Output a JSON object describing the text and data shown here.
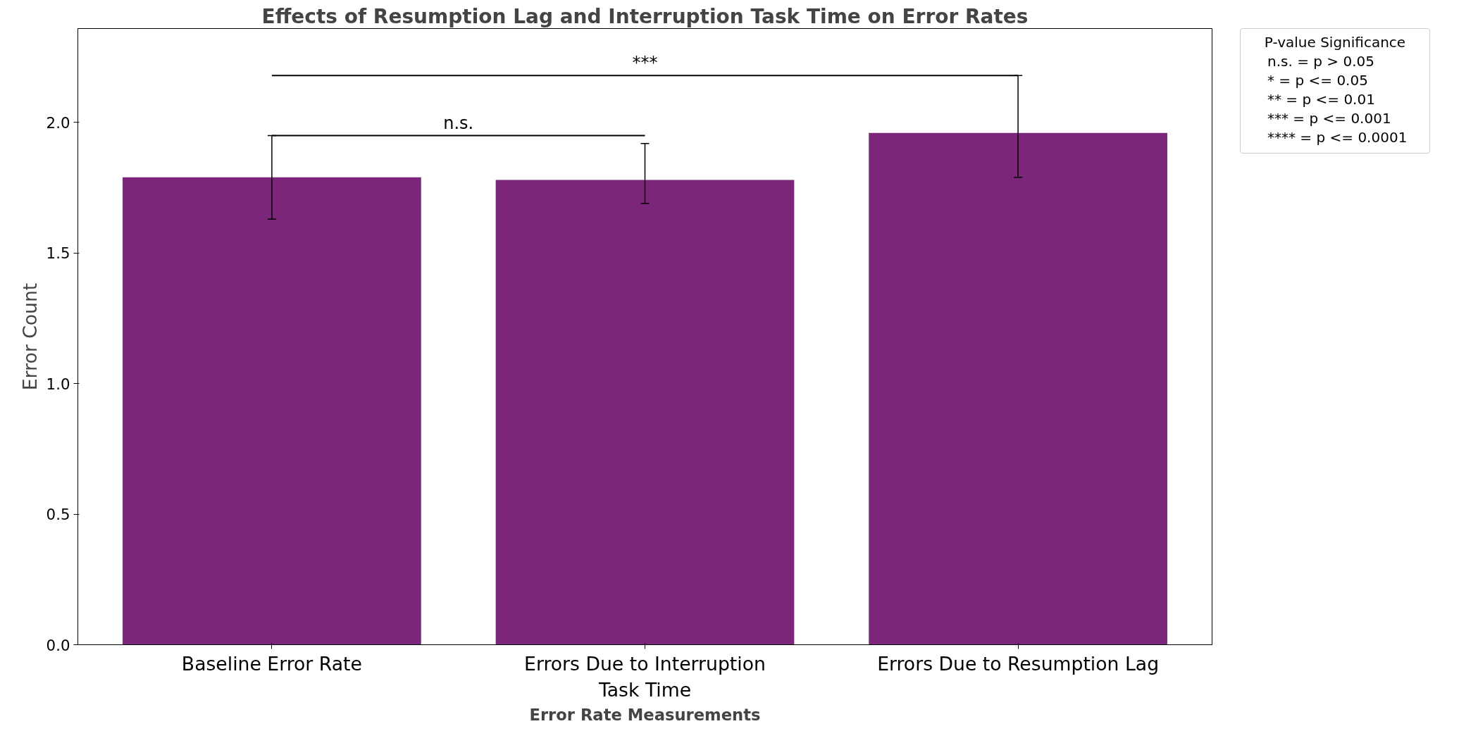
{
  "chart_data": {
    "type": "bar",
    "title": "Effects of Resumption Lag and Interruption Task Time on Error Rates",
    "xlabel": "Error Rate Measurements",
    "ylabel": "Error Count",
    "categories": [
      "Baseline Error Rate",
      "Errors Due to Interruption\nTask Time",
      "Errors Due to Resumption Lag"
    ],
    "values": [
      1.79,
      1.78,
      1.96
    ],
    "color": "#7b267b",
    "errors": [
      [
        1.63,
        1.95
      ],
      [
        1.69,
        1.92
      ],
      [
        1.79,
        2.18
      ]
    ],
    "ylim": [
      0,
      2.36
    ],
    "yticks": [
      {
        "value": 0,
        "label": "0.0"
      },
      {
        "value": 0.5,
        "label": "0.5"
      },
      {
        "value": 1,
        "label": "1.0"
      },
      {
        "value": 1.5,
        "label": "1.5"
      },
      {
        "value": 2,
        "label": "2.0"
      }
    ],
    "grid": false,
    "legend_title": "P-value Significance",
    "annotations": [
      "n.s.",
      "***",
      "n.s. = p > 0.05",
      "* = p <= 0.05",
      "** = p <= 0.01",
      "*** = p <= 0.001",
      "**** = p <= 0.0001"
    ]
  }
}
